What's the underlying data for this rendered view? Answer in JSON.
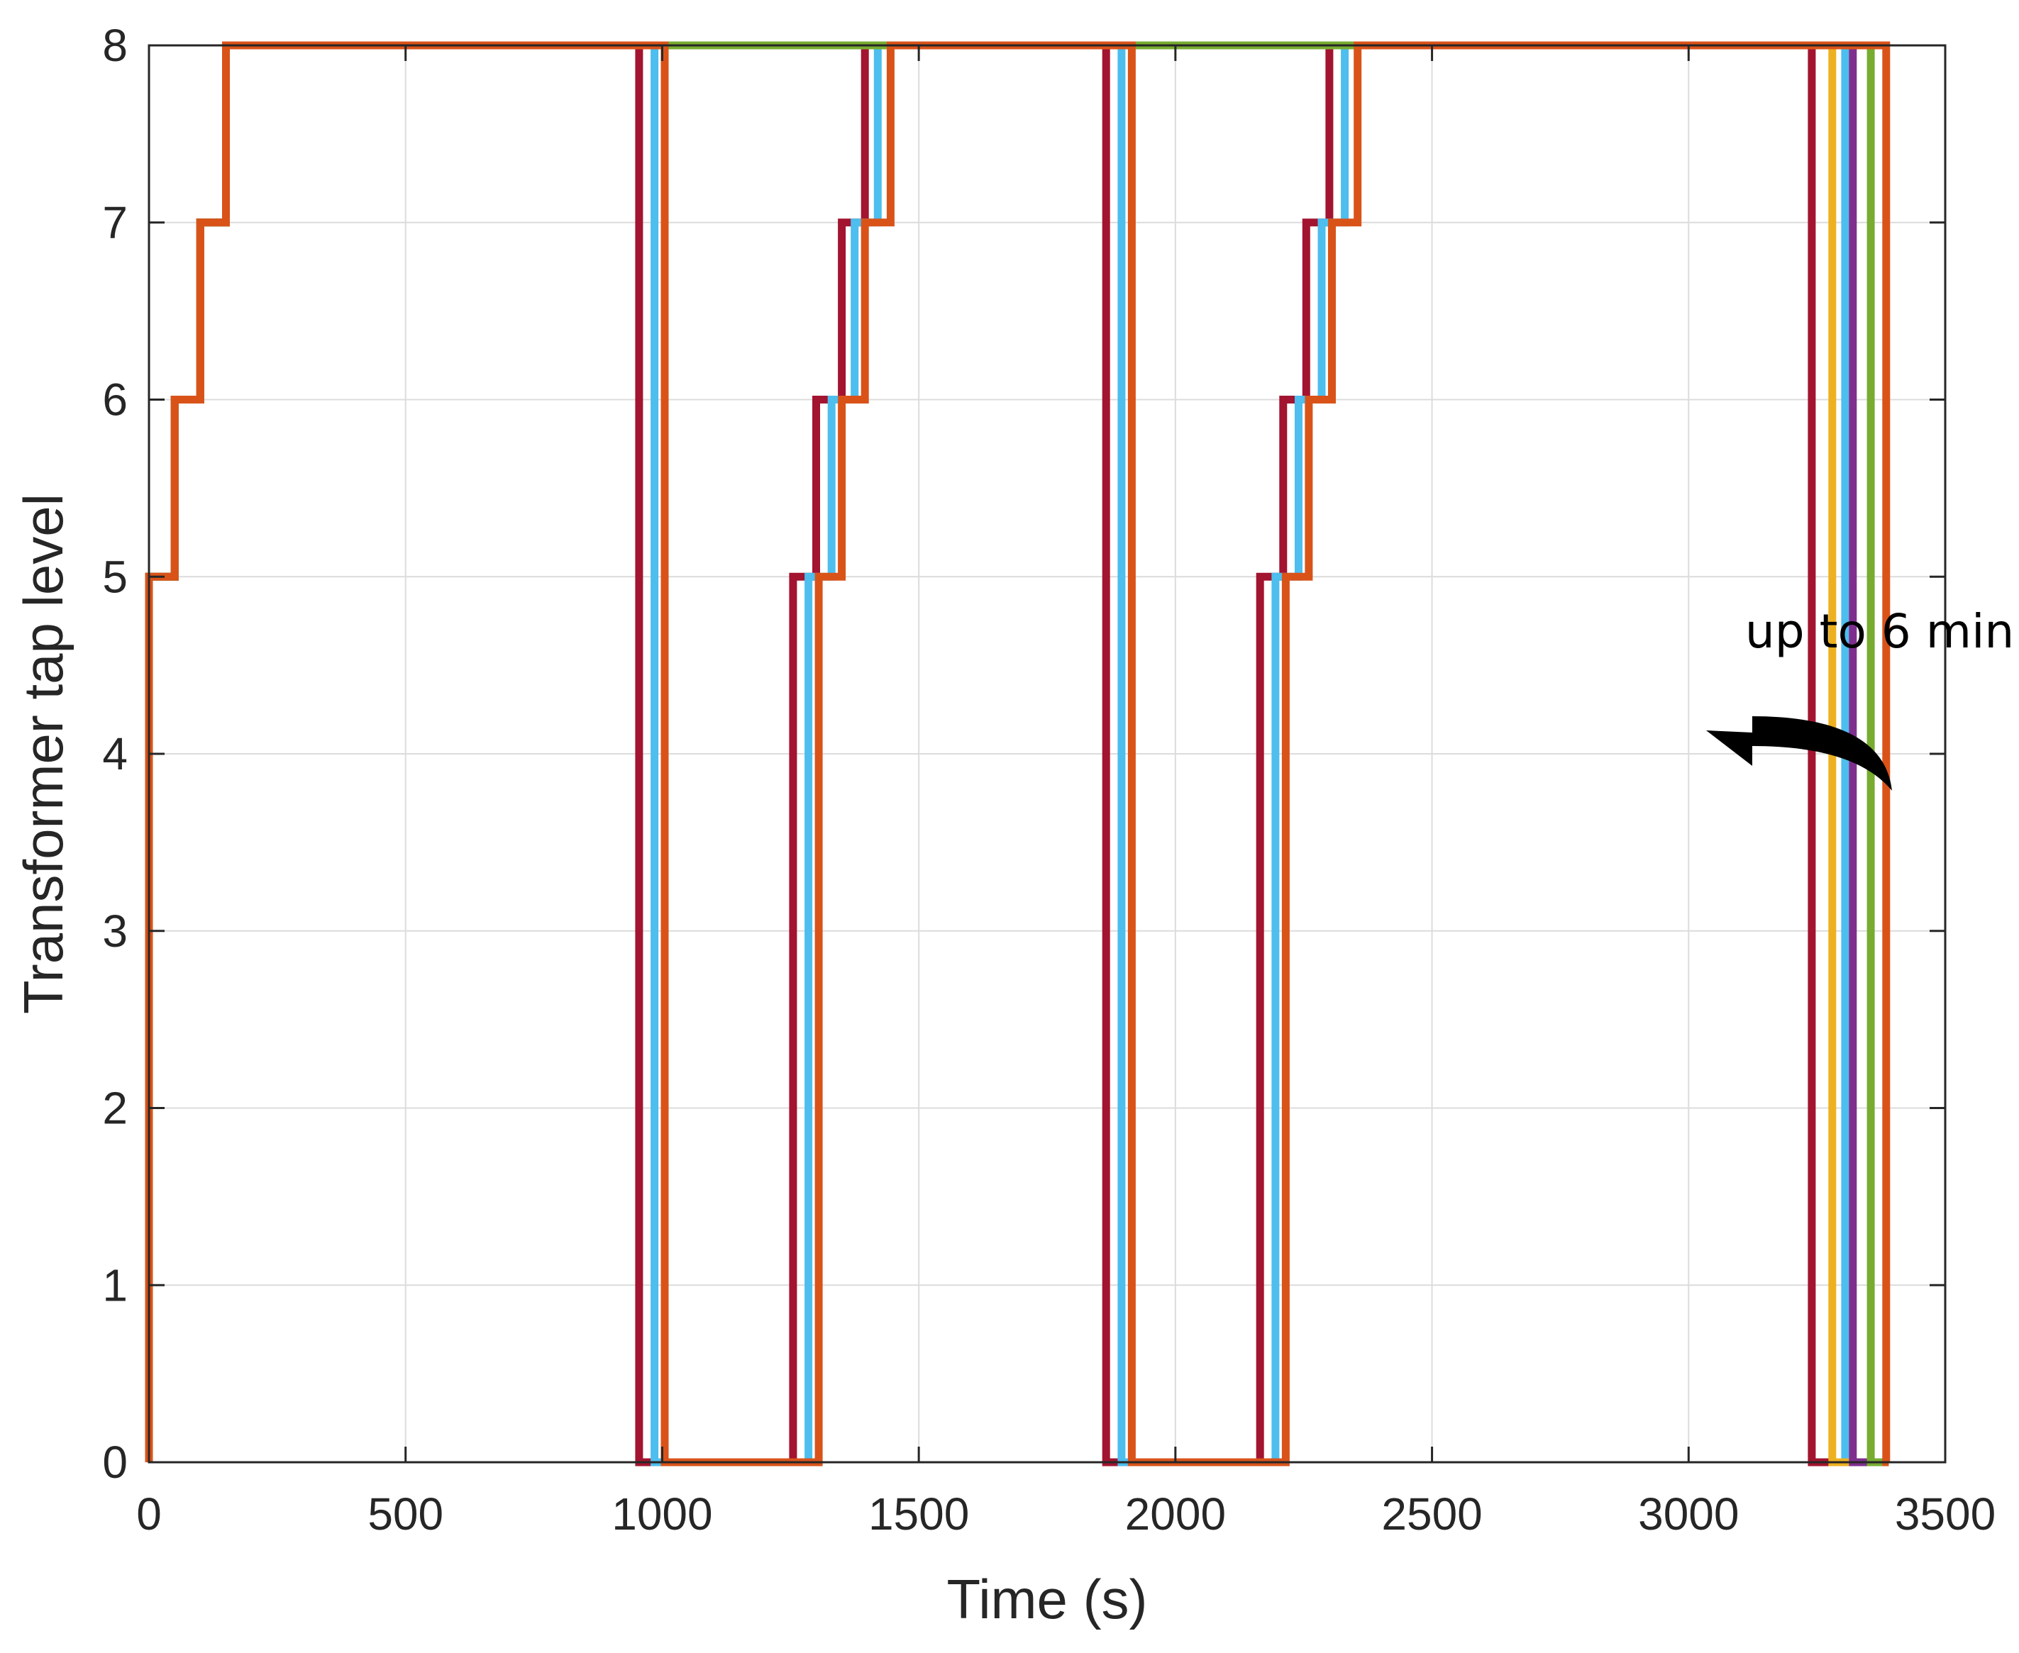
{
  "chart_data": {
    "type": "line",
    "title": "",
    "xlabel": "Time (s)",
    "ylabel": "Transformer tap level",
    "xlim": [
      0,
      3500
    ],
    "ylim": [
      0,
      8
    ],
    "xticks": [
      0,
      500,
      1000,
      1500,
      2000,
      2500,
      3000,
      3500
    ],
    "yticks": [
      0,
      1,
      2,
      3,
      4,
      5,
      6,
      7,
      8
    ],
    "grid": true,
    "annotations": [
      {
        "text": "up to 6 min.",
        "x": 3110,
        "y": 4.6
      }
    ],
    "series": [
      {
        "color": "#A2142F",
        "x": [
          0,
          0,
          50,
          50,
          100,
          100,
          150,
          150,
          955,
          955,
          1255,
          1255,
          1300,
          1300,
          1350,
          1350,
          1395,
          1395,
          1865,
          1865,
          2165,
          2165,
          2210,
          2210,
          2255,
          2255,
          2300,
          2300,
          3240,
          3240,
          3390
        ],
        "y": [
          0,
          5,
          5,
          6,
          6,
          7,
          7,
          8,
          8,
          0,
          0,
          5,
          5,
          6,
          6,
          7,
          7,
          8,
          8,
          0,
          0,
          5,
          5,
          6,
          6,
          7,
          7,
          8,
          8,
          0,
          0
        ]
      },
      {
        "color": "#4DBEEE",
        "x": [
          0,
          0,
          50,
          50,
          100,
          100,
          150,
          150,
          985,
          985,
          1285,
          1285,
          1330,
          1330,
          1375,
          1375,
          1420,
          1420,
          1895,
          1895,
          2195,
          2195,
          2240,
          2240,
          2285,
          2285,
          2330,
          2330,
          3305,
          3305,
          3390
        ],
        "y": [
          0,
          5,
          5,
          6,
          6,
          7,
          7,
          8,
          8,
          0,
          0,
          5,
          5,
          6,
          6,
          7,
          7,
          8,
          8,
          0,
          0,
          5,
          5,
          6,
          6,
          7,
          7,
          8,
          8,
          0,
          0
        ]
      },
      {
        "color": "#EDB120",
        "x": [
          0,
          0,
          50,
          50,
          100,
          100,
          150,
          150,
          3280,
          3280,
          3390
        ],
        "y": [
          0,
          5,
          5,
          6,
          6,
          7,
          7,
          8,
          8,
          0,
          0
        ]
      },
      {
        "color": "#7E2F8E",
        "x": [
          0,
          0,
          50,
          50,
          100,
          100,
          150,
          150,
          3320,
          3320,
          3390
        ],
        "y": [
          0,
          5,
          5,
          6,
          6,
          7,
          7,
          8,
          8,
          0,
          0
        ]
      },
      {
        "color": "#77AC30",
        "x": [
          0,
          0,
          50,
          50,
          100,
          100,
          150,
          150,
          3355,
          3355,
          3390
        ],
        "y": [
          0,
          5,
          5,
          6,
          6,
          7,
          7,
          8,
          8,
          0,
          0
        ]
      },
      {
        "color": "#D95319",
        "x": [
          0,
          0,
          50,
          50,
          100,
          100,
          150,
          150,
          1005,
          1005,
          1305,
          1305,
          1350,
          1350,
          1395,
          1395,
          1445,
          1445,
          1915,
          1915,
          2215,
          2215,
          2260,
          2260,
          2305,
          2305,
          2355,
          2355,
          3385,
          3385,
          3390
        ],
        "y": [
          0,
          5,
          5,
          6,
          6,
          7,
          7,
          8,
          8,
          0,
          0,
          5,
          5,
          6,
          6,
          7,
          7,
          8,
          8,
          0,
          0,
          5,
          5,
          6,
          6,
          7,
          7,
          8,
          8,
          0,
          0
        ]
      }
    ]
  }
}
